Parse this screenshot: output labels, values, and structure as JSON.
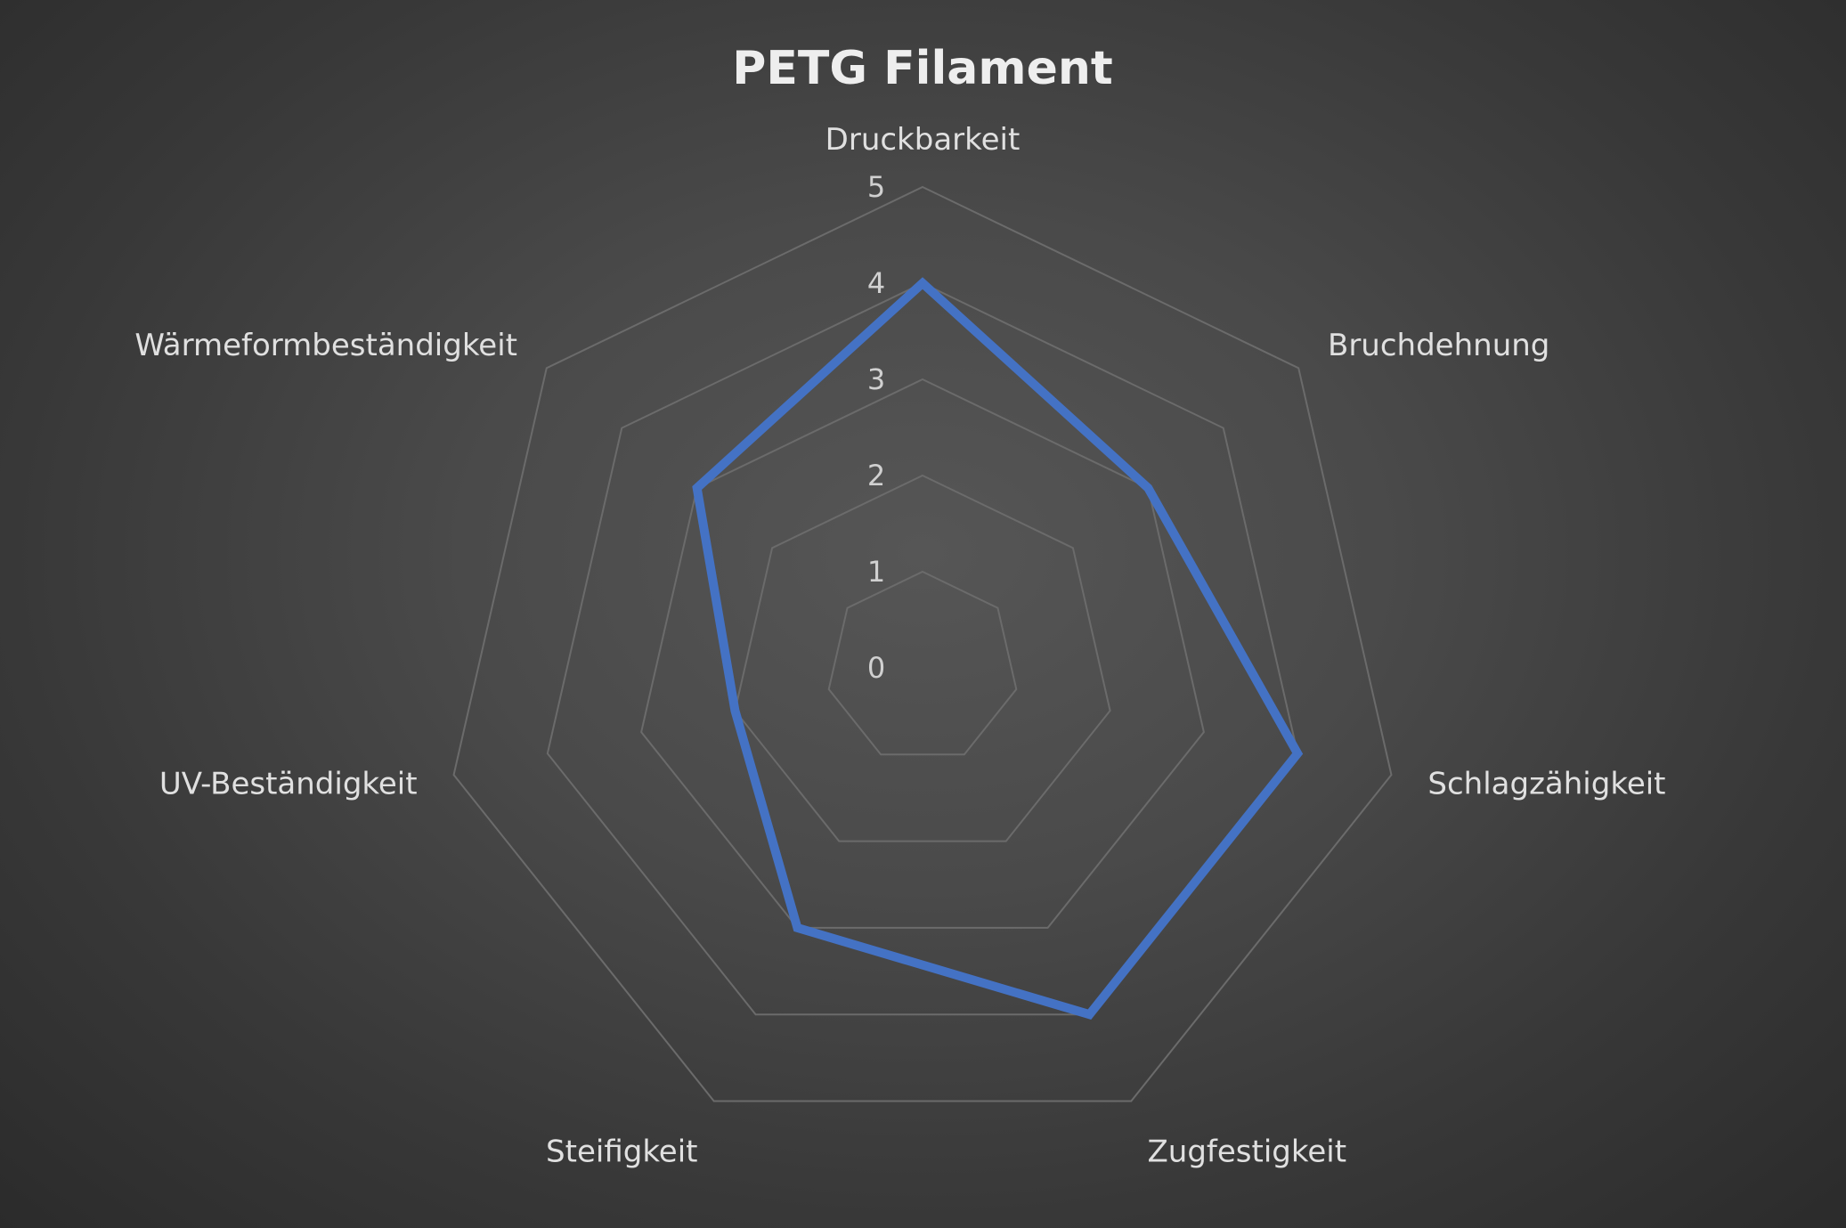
{
  "chart_data": {
    "type": "radar",
    "title": "PETG Filament",
    "categories": [
      "Druckbarkeit",
      "Bruchdehnung",
      "Schlagzähigkeit",
      "Zugfestigkeit",
      "Steifigkeit",
      "UV-Beständigkeit",
      "Wärmeformbeständigkeit"
    ],
    "series": [
      {
        "values": [
          4,
          3,
          4,
          4,
          3,
          2,
          3
        ],
        "color": "#4472c4"
      }
    ],
    "rlim": [
      0,
      5
    ],
    "ticks": [
      "0",
      "1",
      "2",
      "3",
      "4",
      "5"
    ],
    "grid": true,
    "legend": "none",
    "colors": {
      "grid": "#6b6b6b",
      "text": "#e0e0e0"
    }
  }
}
